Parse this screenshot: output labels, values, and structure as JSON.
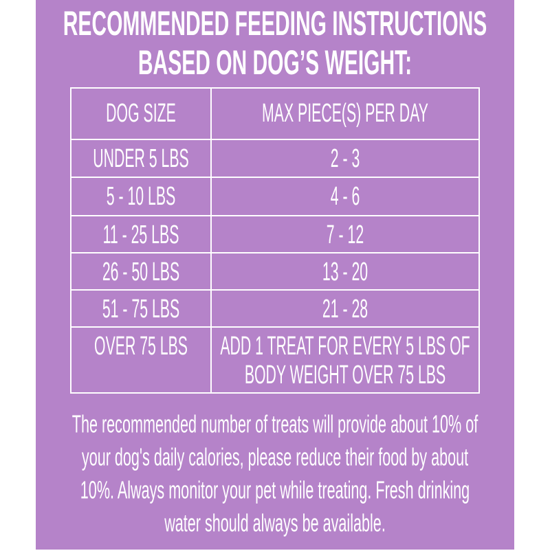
{
  "title": [
    "RECOMMENDED FEEDING INSTRUCTIONS",
    "BASED ON DOG’S WEIGHT:"
  ],
  "table": {
    "header": [
      "DOG SIZE",
      "MAX PIECE(S) PER DAY"
    ],
    "rows": [
      [
        "UNDER 5 LBS",
        [
          "2 - 3"
        ]
      ],
      [
        "5 - 10 LBS",
        [
          "4 - 6"
        ]
      ],
      [
        "11 - 25 LBS",
        [
          "7 - 12"
        ]
      ],
      [
        "26 - 50 LBS",
        [
          "13 - 20"
        ]
      ],
      [
        "51 - 75 LBS",
        [
          "21 - 28"
        ]
      ],
      [
        "OVER 75 LBS",
        [
          "ADD 1 TREAT FOR EVERY 5 LBS OF",
          "BODY WEIGHT OVER 75 LBS"
        ]
      ]
    ]
  },
  "note": [
    "The recommended number of treats will provide about 10% of",
    "your dog's daily calories, please reduce their food by about",
    "10%. Always monitor your pet while treating. Fresh drinking",
    "water should always be available."
  ]
}
